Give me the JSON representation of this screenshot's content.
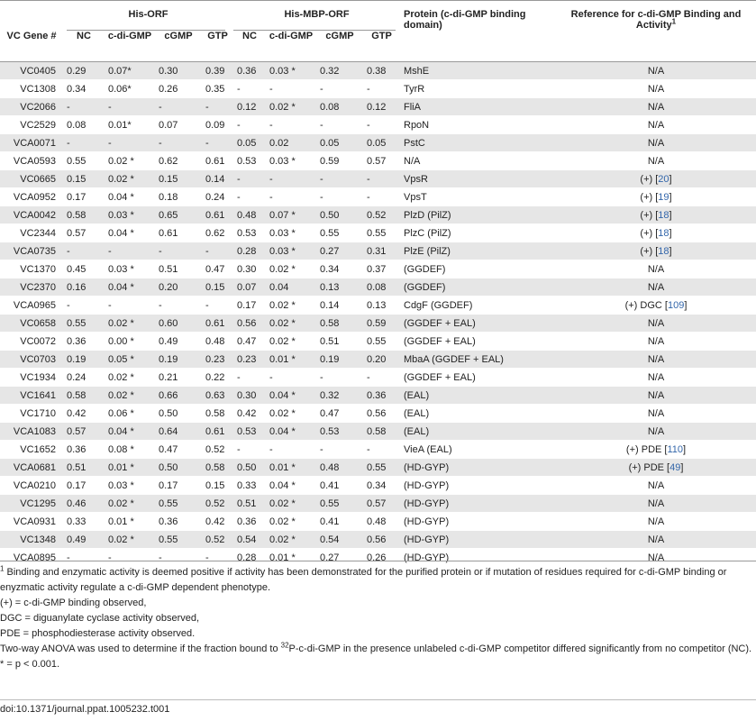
{
  "header": {
    "group_his_orf": "His-ORF",
    "group_his_mbp_orf": "His-MBP-ORF",
    "protein_col": "Protein (c-di-GMP binding domain)",
    "reference_col": "Reference for c-di-GMP Binding and Activity",
    "reference_sup": "1",
    "gene_col": "VC Gene #",
    "sub_cols": [
      "NC",
      "c-di-GMP",
      "cGMP",
      "GTP",
      "NC",
      "c-di-GMP",
      "cGMP",
      "GTP"
    ]
  },
  "rows": [
    {
      "gene": "VC0405",
      "h": [
        "0.29",
        "0.07*",
        "0.30",
        "0.39"
      ],
      "m": [
        "0.36",
        "0.03 *",
        "0.32",
        "0.38"
      ],
      "protein": "MshE",
      "ref": "N/A",
      "ref_cite": ""
    },
    {
      "gene": "VC1308",
      "h": [
        "0.34",
        "0.06*",
        "0.26",
        "0.35"
      ],
      "m": [
        "-",
        "-",
        "-",
        "-"
      ],
      "protein": "TyrR",
      "ref": "N/A",
      "ref_cite": ""
    },
    {
      "gene": "VC2066",
      "h": [
        "-",
        "-",
        "-",
        "-"
      ],
      "m": [
        "0.12",
        "0.02 *",
        "0.08",
        "0.12"
      ],
      "protein": "FliA",
      "ref": "N/A",
      "ref_cite": ""
    },
    {
      "gene": "VC2529",
      "h": [
        "0.08",
        "0.01*",
        "0.07",
        "0.09"
      ],
      "m": [
        "-",
        "-",
        "-",
        "-"
      ],
      "protein": "RpoN",
      "ref": "N/A",
      "ref_cite": ""
    },
    {
      "gene": "VCA0071",
      "h": [
        "-",
        "-",
        "-",
        "-"
      ],
      "m": [
        "0.05",
        "0.02",
        "0.05",
        "0.05"
      ],
      "protein": "PstC",
      "ref": "N/A",
      "ref_cite": ""
    },
    {
      "gene": "VCA0593",
      "h": [
        "0.55",
        "0.02 *",
        "0.62",
        "0.61"
      ],
      "m": [
        "0.53",
        "0.03 *",
        "0.59",
        "0.57"
      ],
      "protein": "N/A",
      "ref": "N/A",
      "ref_cite": ""
    },
    {
      "gene": "VC0665",
      "h": [
        "0.15",
        "0.02 *",
        "0.15",
        "0.14"
      ],
      "m": [
        "-",
        "-",
        "-",
        "-"
      ],
      "protein": "VpsR",
      "ref": "(+) [",
      "ref_cite": "20"
    },
    {
      "gene": "VCA0952",
      "h": [
        "0.17",
        "0.04 *",
        "0.18",
        "0.24"
      ],
      "m": [
        "-",
        "-",
        "-",
        "-"
      ],
      "protein": "VpsT",
      "ref": "(+) [",
      "ref_cite": "19"
    },
    {
      "gene": "VCA0042",
      "h": [
        "0.58",
        "0.03 *",
        "0.65",
        "0.61"
      ],
      "m": [
        "0.48",
        "0.07 *",
        "0.50",
        "0.52"
      ],
      "protein": "PlzD (PilZ)",
      "ref": "(+) [",
      "ref_cite": "18"
    },
    {
      "gene": "VC2344",
      "h": [
        "0.57",
        "0.04 *",
        "0.61",
        "0.62"
      ],
      "m": [
        "0.53",
        "0.03 *",
        "0.55",
        "0.55"
      ],
      "protein": "PlzC (PilZ)",
      "ref": "(+) [",
      "ref_cite": "18"
    },
    {
      "gene": "VCA0735",
      "h": [
        "-",
        "-",
        "-",
        "-"
      ],
      "m": [
        "0.28",
        "0.03 *",
        "0.27",
        "0.31"
      ],
      "protein": "PlzE (PilZ)",
      "ref": "(+) [",
      "ref_cite": "18"
    },
    {
      "gene": "VC1370",
      "h": [
        "0.45",
        "0.03 *",
        "0.51",
        "0.47"
      ],
      "m": [
        "0.30",
        "0.02 *",
        "0.34",
        "0.37"
      ],
      "protein": "(GGDEF)",
      "ref": "N/A",
      "ref_cite": ""
    },
    {
      "gene": "VC2370",
      "h": [
        "0.16",
        "0.04 *",
        "0.20",
        "0.15"
      ],
      "m": [
        "0.07",
        "0.04",
        "0.13",
        "0.08"
      ],
      "protein": "(GGDEF)",
      "ref": "N/A",
      "ref_cite": ""
    },
    {
      "gene": "VCA0965",
      "h": [
        "-",
        "-",
        "-",
        "-"
      ],
      "m": [
        "0.17",
        "0.02 *",
        "0.14",
        "0.13"
      ],
      "protein": "CdgF (GGDEF)",
      "ref": "(+) DGC [",
      "ref_cite": "109"
    },
    {
      "gene": "VC0658",
      "h": [
        "0.55",
        "0.02 *",
        "0.60",
        "0.61"
      ],
      "m": [
        "0.56",
        "0.02 *",
        "0.58",
        "0.59"
      ],
      "protein": "(GGDEF + EAL)",
      "ref": "N/A",
      "ref_cite": ""
    },
    {
      "gene": "VC0072",
      "h": [
        "0.36",
        "0.00 *",
        "0.49",
        "0.48"
      ],
      "m": [
        "0.47",
        "0.02 *",
        "0.51",
        "0.55"
      ],
      "protein": "(GGDEF + EAL)",
      "ref": "N/A",
      "ref_cite": ""
    },
    {
      "gene": "VC0703",
      "h": [
        "0.19",
        "0.05 *",
        "0.19",
        "0.23"
      ],
      "m": [
        "0.23",
        "0.01 *",
        "0.19",
        "0.20"
      ],
      "protein": "MbaA (GGDEF + EAL)",
      "ref": "N/A",
      "ref_cite": ""
    },
    {
      "gene": "VC1934",
      "h": [
        "0.24",
        "0.02 *",
        "0.21",
        "0.22"
      ],
      "m": [
        "-",
        "-",
        "-",
        "-"
      ],
      "protein": "(GGDEF + EAL)",
      "ref": "N/A",
      "ref_cite": ""
    },
    {
      "gene": "VC1641",
      "h": [
        "0.58",
        "0.02 *",
        "0.66",
        "0.63"
      ],
      "m": [
        "0.30",
        "0.04 *",
        "0.32",
        "0.36"
      ],
      "protein": "(EAL)",
      "ref": "N/A",
      "ref_cite": ""
    },
    {
      "gene": "VC1710",
      "h": [
        "0.42",
        "0.06 *",
        "0.50",
        "0.58"
      ],
      "m": [
        "0.42",
        "0.02 *",
        "0.47",
        "0.56"
      ],
      "protein": "(EAL)",
      "ref": "N/A",
      "ref_cite": ""
    },
    {
      "gene": "VCA1083",
      "h": [
        "0.57",
        "0.04 *",
        "0.64",
        "0.61"
      ],
      "m": [
        "0.53",
        "0.04 *",
        "0.53",
        "0.58"
      ],
      "protein": "(EAL)",
      "ref": "N/A",
      "ref_cite": ""
    },
    {
      "gene": "VC1652",
      "h": [
        "0.36",
        "0.08 *",
        "0.47",
        "0.52"
      ],
      "m": [
        "-",
        "-",
        "-",
        "-"
      ],
      "protein": "VieA (EAL)",
      "ref": "(+) PDE [",
      "ref_cite": "110"
    },
    {
      "gene": "VCA0681",
      "h": [
        "0.51",
        "0.01 *",
        "0.50",
        "0.58"
      ],
      "m": [
        "0.50",
        "0.01 *",
        "0.48",
        "0.55"
      ],
      "protein": "(HD-GYP)",
      "ref": "(+) PDE [",
      "ref_cite": "49"
    },
    {
      "gene": "VCA0210",
      "h": [
        "0.17",
        "0.03 *",
        "0.17",
        "0.15"
      ],
      "m": [
        "0.33",
        "0.04 *",
        "0.41",
        "0.34"
      ],
      "protein": "(HD-GYP)",
      "ref": "N/A",
      "ref_cite": ""
    },
    {
      "gene": "VC1295",
      "h": [
        "0.46",
        "0.02 *",
        "0.55",
        "0.52"
      ],
      "m": [
        "0.51",
        "0.02 *",
        "0.55",
        "0.57"
      ],
      "protein": "(HD-GYP)",
      "ref": "N/A",
      "ref_cite": ""
    },
    {
      "gene": "VCA0931",
      "h": [
        "0.33",
        "0.01 *",
        "0.36",
        "0.42"
      ],
      "m": [
        "0.36",
        "0.02 *",
        "0.41",
        "0.48"
      ],
      "protein": "(HD-GYP)",
      "ref": "N/A",
      "ref_cite": ""
    },
    {
      "gene": "VC1348",
      "h": [
        "0.49",
        "0.02 *",
        "0.55",
        "0.52"
      ],
      "m": [
        "0.54",
        "0.02 *",
        "0.54",
        "0.56"
      ],
      "protein": "(HD-GYP)",
      "ref": "N/A",
      "ref_cite": ""
    },
    {
      "gene": "VCA0895",
      "h": [
        "-",
        "-",
        "-",
        "-"
      ],
      "m": [
        "0.28",
        "0.01 *",
        "0.27",
        "0.26"
      ],
      "protein": "(HD-GYP)",
      "ref": "N/A",
      "ref_cite": ""
    }
  ],
  "footnotes": {
    "note1_sup": "1",
    "note1": " Binding and enzymatic activity is deemed positive if activity has been demonstrated for the purified protein or if mutation of residues required for c-di-GMP binding or enyzmatic activity regulate a c-di-GMP dependent phenotype.",
    "plus": "(+) = c-di-GMP binding observed,",
    "dgc": "DGC = diguanylate cyclase activity observed,",
    "pde": "PDE = phosphodiesterase activity observed.",
    "anova_a": "Two-way ANOVA was used to determine if the fraction bound to ",
    "anova_sup": "32",
    "anova_b": "P-c-di-GMP in the presence unlabeled c-di-GMP competitor differed significantly from no competitor (NC).",
    "sig": "* = p < 0.001."
  },
  "doi": "doi:10.1371/journal.ppat.1005232.t001",
  "colors": {
    "stripe": "#e6e6e6",
    "link": "#3366aa",
    "rule": "#999999"
  }
}
